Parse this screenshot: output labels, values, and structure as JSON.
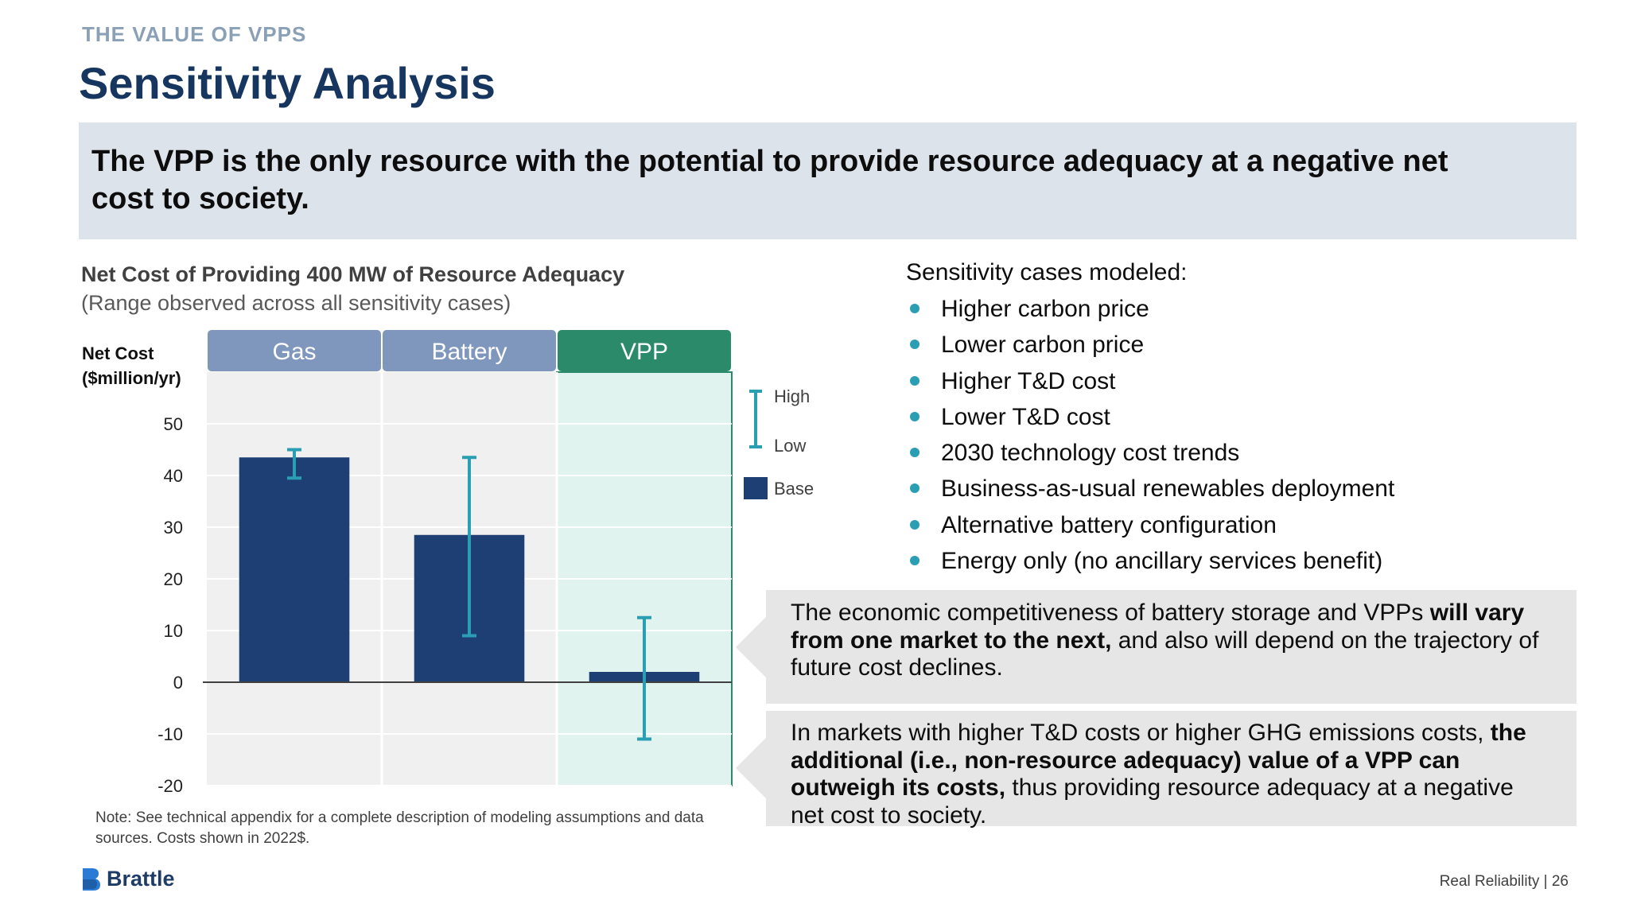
{
  "header": {
    "eyebrow": "THE VALUE OF VPPS",
    "title": "Sensitivity Analysis"
  },
  "banner": {
    "text": "The VPP is the only resource with the potential to provide resource adequacy at a negative net cost to society."
  },
  "chart_data": {
    "type": "bar",
    "title": "Net Cost of Providing 400 MW of Resource Adequacy",
    "subtitle": "(Range observed across all sensitivity cases)",
    "ylabel_line1": "Net Cost",
    "ylabel_line2": "($million/yr)",
    "ylim": [
      -20,
      60
    ],
    "yticks": [
      50,
      40,
      30,
      20,
      10,
      0,
      -10,
      -20
    ],
    "categories": [
      "Gas",
      "Battery",
      "VPP"
    ],
    "series": [
      {
        "name": "Base",
        "values": [
          43.5,
          28.5,
          2
        ]
      }
    ],
    "ranges": [
      {
        "category": "Gas",
        "low": 39.5,
        "high": 45
      },
      {
        "category": "Battery",
        "low": 9,
        "high": 43.5
      },
      {
        "category": "VPP",
        "low": -11,
        "high": 12.5
      }
    ],
    "legend": [
      {
        "label": "High",
        "kind": "range-top"
      },
      {
        "label": "Low",
        "kind": "range-bottom"
      },
      {
        "label": "Base",
        "kind": "bar"
      }
    ],
    "colors": {
      "bar": "#1e3f73",
      "range": "#2a9fb3",
      "header_default": "#7f97bd",
      "header_highlight": "#2a8a6a",
      "highlight_fill": "#e0f3ee",
      "plot_bg": "#f0f0f0"
    },
    "highlight_category": "VPP",
    "grid": true
  },
  "note": "Note: See technical appendix for a complete description of modeling assumptions and data sources. Costs shown in 2022$.",
  "sensitivity": {
    "heading": "Sensitivity cases modeled:",
    "cases": [
      "Higher carbon price",
      "Lower carbon price",
      "Higher T&D cost",
      "Lower T&D cost",
      "2030 technology cost trends",
      "Business-as-usual renewables deployment",
      "Alternative battery configuration",
      "Energy only (no ancillary services benefit)"
    ]
  },
  "callouts": {
    "c1_part1": "The economic competitiveness of battery storage and VPPs ",
    "c1_bold": "will vary from one market to the next,",
    "c1_part2": " and also will depend on the trajectory of future cost declines.",
    "c2_part1": "In markets with higher T&D costs or higher GHG emissions costs, ",
    "c2_bold": "the additional (i.e., non-resource adequacy) value of a VPP can outweigh its costs,",
    "c2_part2": " thus providing resource adequacy at a negative net cost to society."
  },
  "footer": {
    "brand": "Brattle",
    "text": "Real Reliability | 26"
  },
  "brand_colors": {
    "title": "#16365f",
    "eyebrow": "#8aa0b6",
    "logo": "#2a7bd3"
  }
}
